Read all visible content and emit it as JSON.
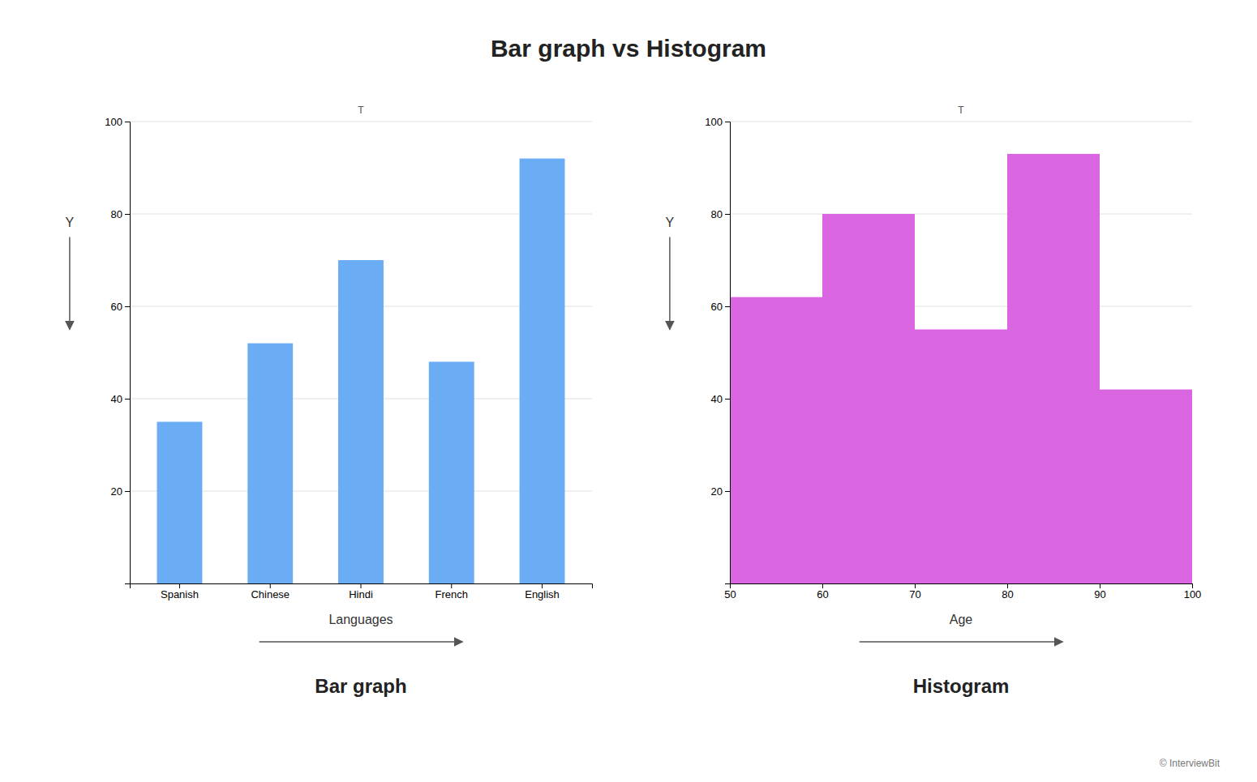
{
  "title": "Bar graph vs Histogram",
  "annotations": [
    "© InterviewBit"
  ],
  "chart_data": [
    {
      "type": "bar",
      "title": "Bar graph",
      "xlabel": "Languages",
      "ylabel": "Y",
      "annotations": [
        "T"
      ],
      "categories": [
        "Spanish",
        "Chinese",
        "Hindi",
        "French",
        "English"
      ],
      "values": [
        35,
        52,
        70,
        48,
        92
      ],
      "color": "#6badf5",
      "ylim": [
        0,
        100
      ],
      "yticks": [
        20,
        40,
        60,
        80,
        100
      ],
      "grid": true
    },
    {
      "type": "histogram",
      "title": "Histogram",
      "xlabel": "Age",
      "ylabel": "Y",
      "annotations": [
        "T"
      ],
      "bins": [
        50,
        60,
        70,
        80,
        90,
        100
      ],
      "values": [
        62,
        80,
        55,
        93,
        42
      ],
      "color": "#d966e0",
      "xlim": [
        50,
        100
      ],
      "xticks": [
        50,
        60,
        70,
        80,
        90,
        100
      ],
      "ylim": [
        0,
        100
      ],
      "yticks": [
        20,
        40,
        60,
        80,
        100
      ],
      "grid": true
    }
  ]
}
